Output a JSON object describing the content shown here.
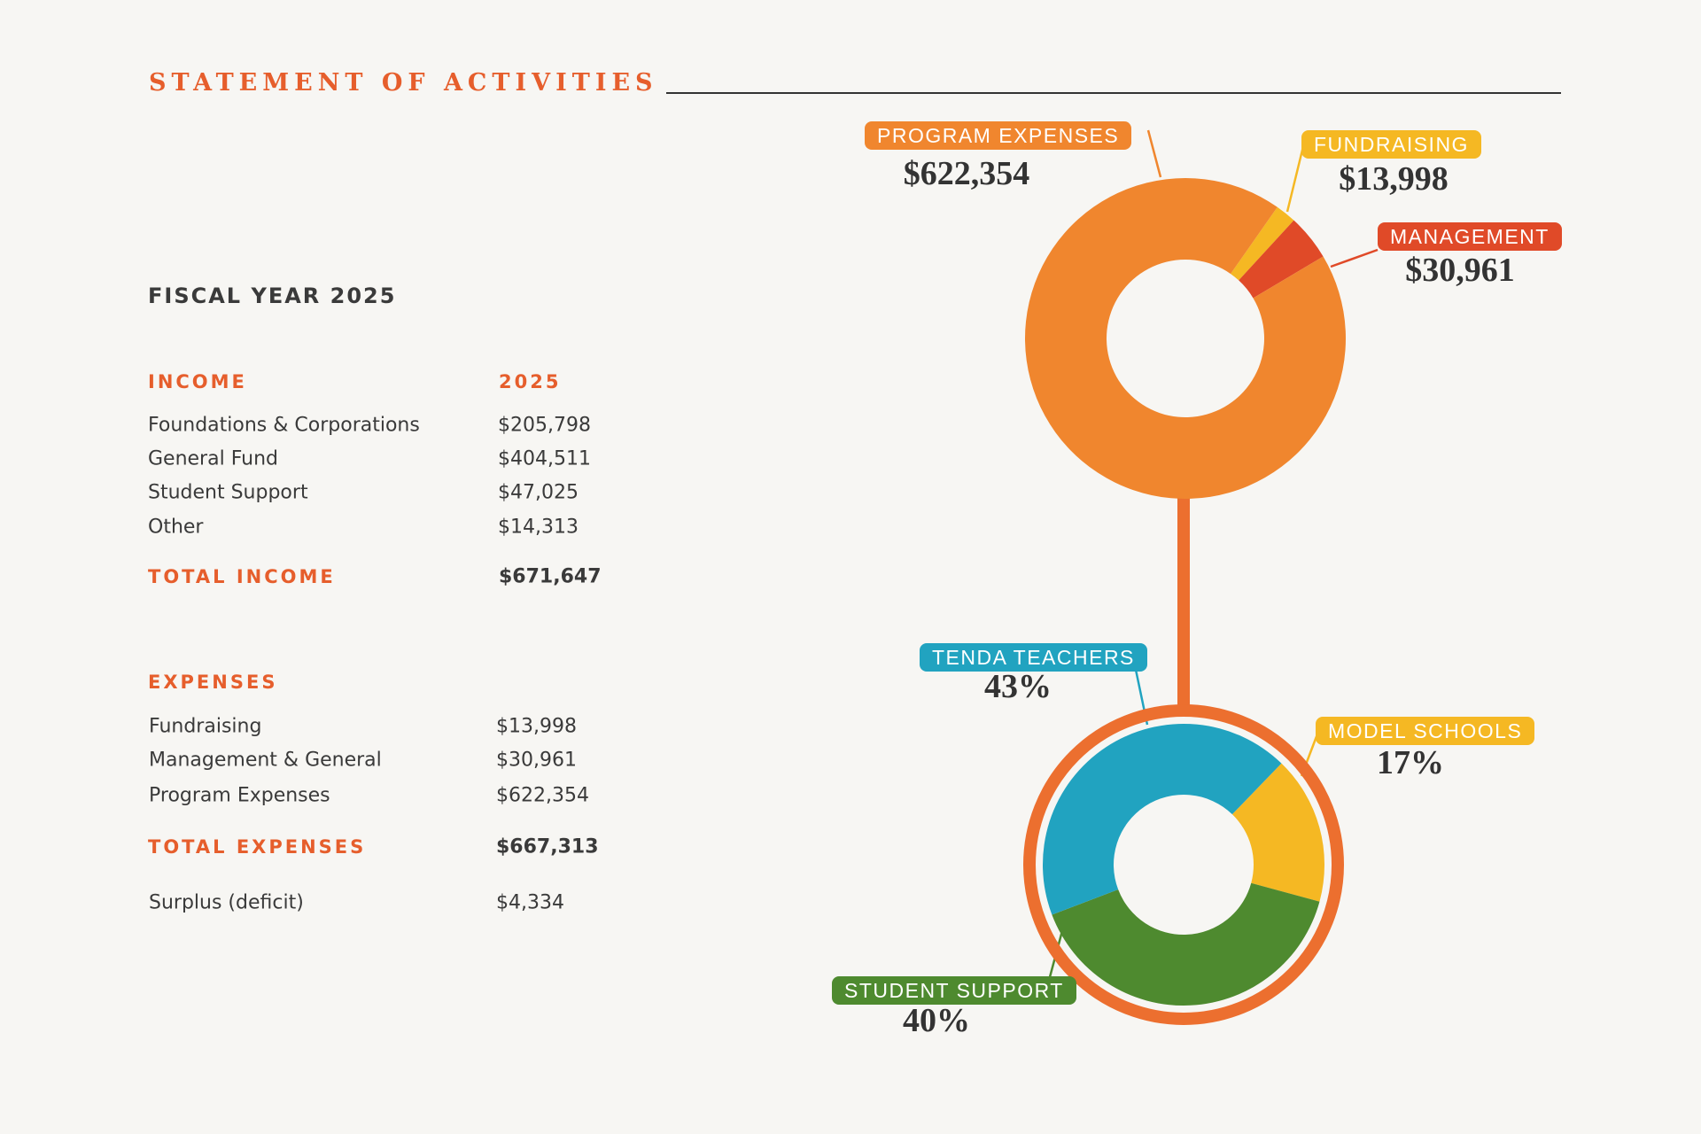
{
  "header": {
    "title": "STATEMENT OF ACTIVITIES",
    "fiscal_year": "FISCAL YEAR 2025"
  },
  "income": {
    "heading": "INCOME",
    "year_heading": "2025",
    "rows": [
      {
        "label": "Foundations & Corporations",
        "value": "$205,798"
      },
      {
        "label": "General Fund",
        "value": "$404,511"
      },
      {
        "label": "Student Support",
        "value": "$47,025"
      },
      {
        "label": "Other",
        "value": "$14,313"
      }
    ],
    "total_label": "TOTAL INCOME",
    "total_value": "$671,647"
  },
  "expenses": {
    "heading": "EXPENSES",
    "rows": [
      {
        "label": "Fundraising",
        "value": "$13,998"
      },
      {
        "label": "Management & General",
        "value": "$30,961"
      },
      {
        "label": "Program Expenses",
        "value": "$622,354"
      }
    ],
    "total_label": "TOTAL EXPENSES",
    "total_value": "$667,313"
  },
  "surplus": {
    "label": "Surplus (deficit)",
    "value": "$4,334"
  },
  "colors": {
    "accent": "#e65e2c",
    "program": "#f0862e",
    "fundraising": "#f5b823",
    "management": "#e04a28",
    "tenda": "#21a3c0",
    "model": "#f5b823",
    "student": "#4e8a2f",
    "ring": "#ec6f2f"
  },
  "chart_data": [
    {
      "type": "pie",
      "variant": "donut",
      "slices": [
        {
          "label": "FUNDRAISING",
          "value": 13998,
          "display": "$13,998",
          "color": "#f5b823"
        },
        {
          "label": "MANAGEMENT",
          "value": 30961,
          "display": "$30,961",
          "color": "#e04a28"
        },
        {
          "label": "PROGRAM EXPENSES",
          "value": 622354,
          "display": "$622,354",
          "color": "#f0862e"
        }
      ]
    },
    {
      "type": "pie",
      "variant": "donut",
      "slices": [
        {
          "label": "MODEL SCHOOLS",
          "value": 17,
          "display": "17%",
          "color": "#f5b823"
        },
        {
          "label": "STUDENT SUPPORT",
          "value": 40,
          "display": "40%",
          "color": "#4e8a2f"
        },
        {
          "label": "TENDA TEACHERS",
          "value": 43,
          "display": "43%",
          "color": "#21a3c0"
        }
      ]
    }
  ]
}
